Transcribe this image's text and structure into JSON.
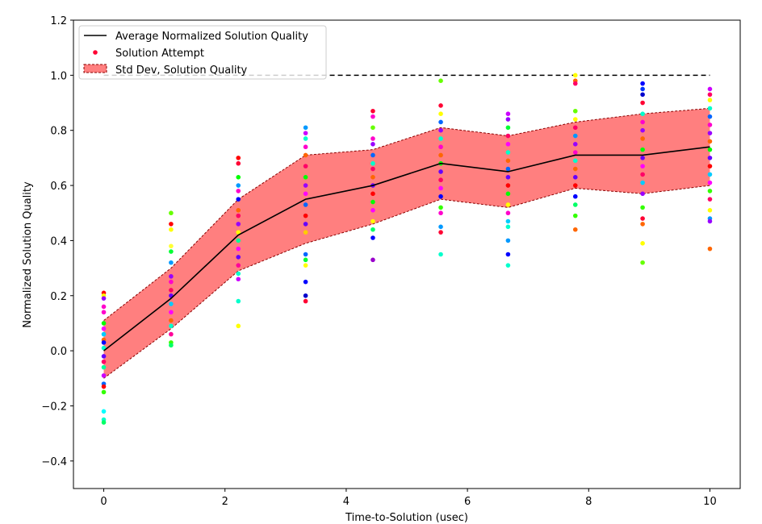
{
  "chart_data": {
    "type": "line",
    "xlabel": "Time-to-Solution (usec)",
    "ylabel": "Normalized Solution Quality",
    "xlim": [
      -0.5,
      10.5
    ],
    "ylim": [
      -0.5,
      1.2
    ],
    "xticks": [
      0,
      2,
      4,
      6,
      8,
      10
    ],
    "xtick_labels": [
      "0",
      "2",
      "4",
      "6",
      "8",
      "10"
    ],
    "yticks": [
      -0.4,
      -0.2,
      0.0,
      0.2,
      0.4,
      0.6,
      0.8,
      1.0,
      1.2
    ],
    "ytick_labels": [
      "−0.4",
      "−0.2",
      "0.0",
      "0.2",
      "0.4",
      "0.6",
      "0.8",
      "1.0",
      "1.2"
    ],
    "grid": false,
    "legend_position": "top-left",
    "legend": [
      {
        "label": "Average Normalized Solution Quality",
        "kind": "line",
        "color": "#000000"
      },
      {
        "label": "Solution Attempt",
        "kind": "point",
        "color": "#ff0033"
      },
      {
        "label": "Std Dev, Solution Quality",
        "kind": "band",
        "color": "#ff7f7f"
      }
    ],
    "reference_line": {
      "y": 1.0,
      "x_range": [
        0,
        10
      ],
      "style": "dashed",
      "color": "#000000"
    },
    "band_color": "#ff7f7f",
    "band_edge_color": "#8b0000",
    "series": [
      {
        "name": "Average Normalized Solution Quality",
        "x": [
          0,
          1.11,
          2.22,
          3.33,
          4.44,
          5.56,
          6.67,
          7.78,
          8.89,
          10
        ],
        "mean": [
          0.0,
          0.19,
          0.42,
          0.55,
          0.6,
          0.68,
          0.65,
          0.71,
          0.71,
          0.74
        ],
        "upper": [
          0.11,
          0.3,
          0.55,
          0.71,
          0.73,
          0.81,
          0.78,
          0.83,
          0.86,
          0.88
        ],
        "lower": [
          -0.1,
          0.08,
          0.29,
          0.39,
          0.46,
          0.55,
          0.52,
          0.59,
          0.57,
          0.6
        ]
      }
    ],
    "scatter": {
      "name": "Solution Attempt",
      "points": [
        [
          0,
          0.21,
          "#ff0000"
        ],
        [
          0,
          0.2,
          "#ffff00"
        ],
        [
          0,
          0.19,
          "#9900ff"
        ],
        [
          0,
          0.16,
          "#ff00cc"
        ],
        [
          0,
          0.14,
          "#ff00cc"
        ],
        [
          0,
          0.1,
          "#00ff00"
        ],
        [
          0,
          0.08,
          "#ff00ff"
        ],
        [
          0,
          0.06,
          "#00ccff"
        ],
        [
          0,
          0.04,
          "#ff6600"
        ],
        [
          0,
          0.03,
          "#0000ff"
        ],
        [
          0,
          0.01,
          "#00ffcc"
        ],
        [
          0,
          -0.02,
          "#6600ff"
        ],
        [
          0,
          -0.04,
          "#ff0066"
        ],
        [
          0,
          -0.06,
          "#00ff99"
        ],
        [
          0,
          -0.09,
          "#cc00ff"
        ],
        [
          0,
          -0.12,
          "#0066ff"
        ],
        [
          0,
          -0.13,
          "#ff0000"
        ],
        [
          0,
          -0.15,
          "#33ff00"
        ],
        [
          0,
          -0.22,
          "#00ffff"
        ],
        [
          0,
          -0.25,
          "#00ffcc"
        ],
        [
          0,
          -0.26,
          "#00ff66"
        ],
        [
          1.11,
          0.5,
          "#66ff00"
        ],
        [
          1.11,
          0.46,
          "#ff0000"
        ],
        [
          1.11,
          0.44,
          "#ffff00"
        ],
        [
          1.11,
          0.38,
          "#ffff33"
        ],
        [
          1.11,
          0.36,
          "#00ff33"
        ],
        [
          1.11,
          0.32,
          "#0099ff"
        ],
        [
          1.11,
          0.27,
          "#9900ff"
        ],
        [
          1.11,
          0.25,
          "#ff00cc"
        ],
        [
          1.11,
          0.22,
          "#ff0066"
        ],
        [
          1.11,
          0.2,
          "#6600ff"
        ],
        [
          1.11,
          0.17,
          "#00ccff"
        ],
        [
          1.11,
          0.14,
          "#ff00ff"
        ],
        [
          1.11,
          0.11,
          "#ff6600"
        ],
        [
          1.11,
          0.09,
          "#00ffcc"
        ],
        [
          1.11,
          0.06,
          "#ff0099"
        ],
        [
          1.11,
          0.03,
          "#33ff00"
        ],
        [
          1.11,
          0.02,
          "#00ff66"
        ],
        [
          2.22,
          0.7,
          "#ff0000"
        ],
        [
          2.22,
          0.68,
          "#ff0033"
        ],
        [
          2.22,
          0.63,
          "#00ff00"
        ],
        [
          2.22,
          0.6,
          "#0099ff"
        ],
        [
          2.22,
          0.58,
          "#ff00cc"
        ],
        [
          2.22,
          0.55,
          "#0000ff"
        ],
        [
          2.22,
          0.51,
          "#ff6600"
        ],
        [
          2.22,
          0.49,
          "#ff0066"
        ],
        [
          2.22,
          0.46,
          "#9900ff"
        ],
        [
          2.22,
          0.43,
          "#ffff00"
        ],
        [
          2.22,
          0.4,
          "#00ff99"
        ],
        [
          2.22,
          0.37,
          "#ff00ff"
        ],
        [
          2.22,
          0.34,
          "#6600ff"
        ],
        [
          2.22,
          0.31,
          "#ff0099"
        ],
        [
          2.22,
          0.28,
          "#00ffcc"
        ],
        [
          2.22,
          0.26,
          "#cc00ff"
        ],
        [
          2.22,
          0.18,
          "#00ffcc"
        ],
        [
          2.22,
          0.09,
          "#ffff00"
        ],
        [
          3.33,
          0.81,
          "#0099ff"
        ],
        [
          3.33,
          0.79,
          "#cc00ff"
        ],
        [
          3.33,
          0.77,
          "#00ffcc"
        ],
        [
          3.33,
          0.74,
          "#ff00cc"
        ],
        [
          3.33,
          0.71,
          "#ff6600"
        ],
        [
          3.33,
          0.67,
          "#ff0066"
        ],
        [
          3.33,
          0.63,
          "#00ff00"
        ],
        [
          3.33,
          0.6,
          "#9900ff"
        ],
        [
          3.33,
          0.57,
          "#ff00ff"
        ],
        [
          3.33,
          0.53,
          "#0066ff"
        ],
        [
          3.33,
          0.49,
          "#ff0000"
        ],
        [
          3.33,
          0.46,
          "#6600ff"
        ],
        [
          3.33,
          0.43,
          "#ffcc00"
        ],
        [
          3.33,
          0.35,
          "#0066ff"
        ],
        [
          3.33,
          0.33,
          "#00ff33"
        ],
        [
          3.33,
          0.31,
          "#ffff00"
        ],
        [
          3.33,
          0.25,
          "#0000ff"
        ],
        [
          3.33,
          0.2,
          "#0000cc"
        ],
        [
          3.33,
          0.18,
          "#ff0033"
        ],
        [
          4.44,
          0.87,
          "#ff0033"
        ],
        [
          4.44,
          0.85,
          "#ff00cc"
        ],
        [
          4.44,
          0.81,
          "#66ff00"
        ],
        [
          4.44,
          0.77,
          "#ff00cc"
        ],
        [
          4.44,
          0.75,
          "#9900ff"
        ],
        [
          4.44,
          0.71,
          "#0066ff"
        ],
        [
          4.44,
          0.68,
          "#00ffcc"
        ],
        [
          4.44,
          0.66,
          "#ff0066"
        ],
        [
          4.44,
          0.63,
          "#ff6600"
        ],
        [
          4.44,
          0.6,
          "#6600ff"
        ],
        [
          4.44,
          0.57,
          "#ff0000"
        ],
        [
          4.44,
          0.54,
          "#00ff00"
        ],
        [
          4.44,
          0.51,
          "#ff00ff"
        ],
        [
          4.44,
          0.47,
          "#ffff00"
        ],
        [
          4.44,
          0.44,
          "#00ff66"
        ],
        [
          4.44,
          0.41,
          "#0000ff"
        ],
        [
          4.44,
          0.33,
          "#9900cc"
        ],
        [
          5.56,
          0.98,
          "#66ff00"
        ],
        [
          5.56,
          0.89,
          "#ff0033"
        ],
        [
          5.56,
          0.86,
          "#ffff00"
        ],
        [
          5.56,
          0.83,
          "#0066ff"
        ],
        [
          5.56,
          0.8,
          "#9900ff"
        ],
        [
          5.56,
          0.77,
          "#00ffcc"
        ],
        [
          5.56,
          0.74,
          "#ff00cc"
        ],
        [
          5.56,
          0.71,
          "#ff6600"
        ],
        [
          5.56,
          0.68,
          "#00ff00"
        ],
        [
          5.56,
          0.65,
          "#6600ff"
        ],
        [
          5.56,
          0.62,
          "#ff0066"
        ],
        [
          5.56,
          0.59,
          "#ff00ff"
        ],
        [
          5.56,
          0.56,
          "#0000ff"
        ],
        [
          5.56,
          0.52,
          "#33ff00"
        ],
        [
          5.56,
          0.5,
          "#ff00cc"
        ],
        [
          5.56,
          0.45,
          "#0099ff"
        ],
        [
          5.56,
          0.43,
          "#ff0033"
        ],
        [
          5.56,
          0.35,
          "#00ffcc"
        ],
        [
          6.67,
          0.86,
          "#cc00ff"
        ],
        [
          6.67,
          0.84,
          "#9900ff"
        ],
        [
          6.67,
          0.81,
          "#00ff33"
        ],
        [
          6.67,
          0.78,
          "#ff0066"
        ],
        [
          6.67,
          0.75,
          "#ff00ff"
        ],
        [
          6.67,
          0.72,
          "#00ffcc"
        ],
        [
          6.67,
          0.69,
          "#ff6600"
        ],
        [
          6.67,
          0.66,
          "#0066ff"
        ],
        [
          6.67,
          0.63,
          "#6600ff"
        ],
        [
          6.67,
          0.6,
          "#ff0000"
        ],
        [
          6.67,
          0.57,
          "#00ff00"
        ],
        [
          6.67,
          0.53,
          "#ffff00"
        ],
        [
          6.67,
          0.5,
          "#ff00cc"
        ],
        [
          6.67,
          0.47,
          "#00ccff"
        ],
        [
          6.67,
          0.45,
          "#00ffcc"
        ],
        [
          6.67,
          0.4,
          "#0099ff"
        ],
        [
          6.67,
          0.35,
          "#0000ff"
        ],
        [
          6.67,
          0.31,
          "#00ffcc"
        ],
        [
          7.78,
          1.0,
          "#ffff00"
        ],
        [
          7.78,
          0.98,
          "#ff6600"
        ],
        [
          7.78,
          0.97,
          "#ff0066"
        ],
        [
          7.78,
          0.87,
          "#66ff00"
        ],
        [
          7.78,
          0.84,
          "#ffff00"
        ],
        [
          7.78,
          0.81,
          "#ff0066"
        ],
        [
          7.78,
          0.78,
          "#0099ff"
        ],
        [
          7.78,
          0.75,
          "#9900ff"
        ],
        [
          7.78,
          0.72,
          "#ff00cc"
        ],
        [
          7.78,
          0.69,
          "#00ffcc"
        ],
        [
          7.78,
          0.66,
          "#ff6600"
        ],
        [
          7.78,
          0.63,
          "#6600ff"
        ],
        [
          7.78,
          0.6,
          "#ff0000"
        ],
        [
          7.78,
          0.56,
          "#0000ff"
        ],
        [
          7.78,
          0.53,
          "#00ff66"
        ],
        [
          7.78,
          0.49,
          "#33ff00"
        ],
        [
          7.78,
          0.44,
          "#ff6600"
        ],
        [
          8.89,
          0.97,
          "#0000ff"
        ],
        [
          8.89,
          0.95,
          "#0033ff"
        ],
        [
          8.89,
          0.93,
          "#0000cc"
        ],
        [
          8.89,
          0.9,
          "#ff0033"
        ],
        [
          8.89,
          0.86,
          "#00ffcc"
        ],
        [
          8.89,
          0.83,
          "#ff00cc"
        ],
        [
          8.89,
          0.8,
          "#9900ff"
        ],
        [
          8.89,
          0.77,
          "#ff6600"
        ],
        [
          8.89,
          0.73,
          "#00ff00"
        ],
        [
          8.89,
          0.7,
          "#6600ff"
        ],
        [
          8.89,
          0.67,
          "#ff00ff"
        ],
        [
          8.89,
          0.64,
          "#ff0066"
        ],
        [
          8.89,
          0.61,
          "#00ccff"
        ],
        [
          8.89,
          0.57,
          "#9900ff"
        ],
        [
          8.89,
          0.52,
          "#33ff00"
        ],
        [
          8.89,
          0.48,
          "#ff0033"
        ],
        [
          8.89,
          0.46,
          "#ff6600"
        ],
        [
          8.89,
          0.39,
          "#ffff00"
        ],
        [
          8.89,
          0.32,
          "#66ff00"
        ],
        [
          10,
          0.95,
          "#cc00ff"
        ],
        [
          10,
          0.93,
          "#ff0066"
        ],
        [
          10,
          0.91,
          "#ffff00"
        ],
        [
          10,
          0.88,
          "#00ffcc"
        ],
        [
          10,
          0.85,
          "#0066ff"
        ],
        [
          10,
          0.82,
          "#ff00cc"
        ],
        [
          10,
          0.79,
          "#9900ff"
        ],
        [
          10,
          0.76,
          "#ff6600"
        ],
        [
          10,
          0.73,
          "#00ff00"
        ],
        [
          10,
          0.7,
          "#6600ff"
        ],
        [
          10,
          0.67,
          "#ff0000"
        ],
        [
          10,
          0.64,
          "#00ccff"
        ],
        [
          10,
          0.61,
          "#ff00ff"
        ],
        [
          10,
          0.58,
          "#33ff00"
        ],
        [
          10,
          0.55,
          "#ff0066"
        ],
        [
          10,
          0.51,
          "#ffff00"
        ],
        [
          10,
          0.48,
          "#0099ff"
        ],
        [
          10,
          0.47,
          "#9900ff"
        ],
        [
          10,
          0.37,
          "#ff6600"
        ]
      ]
    }
  }
}
